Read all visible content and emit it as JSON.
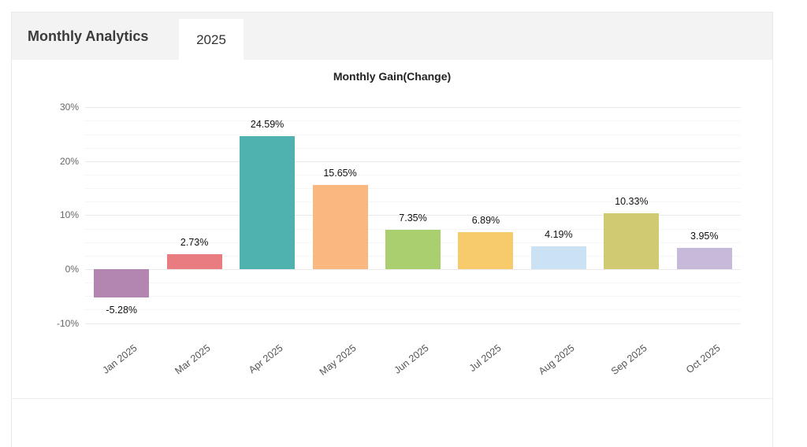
{
  "header": {
    "title": "Monthly Analytics",
    "tab": "2025"
  },
  "chart_data": {
    "type": "bar",
    "title": "Monthly Gain(Change)",
    "xlabel": "",
    "ylabel": "",
    "categories": [
      "Jan 2025",
      "Mar 2025",
      "Apr 2025",
      "May 2025",
      "Jun 2025",
      "Jul 2025",
      "Aug 2025",
      "Sep 2025",
      "Oct 2025"
    ],
    "values": [
      -5.28,
      2.73,
      24.59,
      15.65,
      7.35,
      6.89,
      4.19,
      10.33,
      3.95
    ],
    "value_labels": [
      "-5.28%",
      "2.73%",
      "24.59%",
      "15.65%",
      "7.35%",
      "6.89%",
      "4.19%",
      "10.33%",
      "3.95%"
    ],
    "bar_colors": [
      "#b286b1",
      "#e97c80",
      "#50b2ae",
      "#fbb780",
      "#a9cf6e",
      "#f7cb6b",
      "#cbe2f5",
      "#d0ca73",
      "#c7b9d9"
    ],
    "ytick_labels": [
      "30%",
      "20%",
      "10%",
      "0%",
      "-10%"
    ],
    "ytick_values": [
      30,
      20,
      10,
      0,
      -10
    ],
    "minor_tick_step": 2.5,
    "ylim": [
      -12.5,
      32.5
    ],
    "grid": true,
    "legend": "none"
  }
}
